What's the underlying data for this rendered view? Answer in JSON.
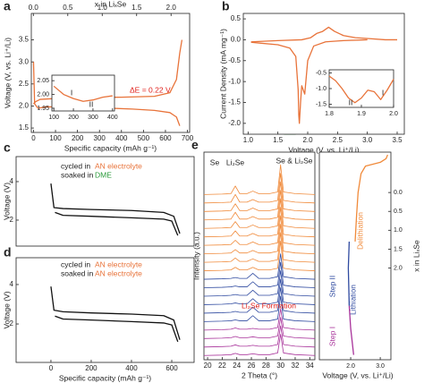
{
  "chart_data": [
    {
      "type": "line",
      "panel": "a",
      "xlim": [
        -10,
        710
      ],
      "ylim": [
        1.4,
        4.1
      ],
      "xticks": [
        0,
        100,
        200,
        300,
        400,
        500,
        600,
        700
      ],
      "yticks": [
        1.5,
        {
          "value": 2.0,
          "label": "2.0"
        },
        2.5,
        {
          "value": 3.0,
          "label": "3.0"
        },
        3.5
      ],
      "x2lim": [
        -0.03,
        2.27
      ],
      "x2ticks": [
        {
          "value": 0,
          "label": "0.0"
        },
        0.5,
        {
          "value": 1.0,
          "label": "1.0"
        },
        1.5,
        {
          "value": 2.0,
          "label": "2.0"
        }
      ],
      "x2label": "x in LiₓSe",
      "xlabel": "Specific capacity (mAh g⁻¹)",
      "ylabel": "Voltage (V, vs. Li⁺/Li)",
      "series": [
        {
          "color": "#e8733a",
          "x": [
            0,
            5,
            20,
            60,
            150,
            300,
            450,
            550,
            620,
            650,
            665
          ],
          "values": [
            3.0,
            2.05,
            1.95,
            1.98,
            1.98,
            1.96,
            1.93,
            1.9,
            1.85,
            1.75,
            1.55
          ]
        },
        {
          "color": "#e8733a",
          "x": [
            0,
            10,
            30,
            100,
            250,
            400,
            550,
            620,
            650,
            665,
            675
          ],
          "values": [
            2.05,
            2.1,
            2.15,
            2.17,
            2.19,
            2.2,
            2.22,
            2.3,
            2.6,
            3.2,
            3.5
          ]
        }
      ],
      "annotations": [
        {
          "text": "ΔE = 0.22 V",
          "color": "#e0201b"
        }
      ]
    },
    {
      "type": "line",
      "xlim": [
        90,
        410
      ],
      "ylim": [
        1.94,
        2.07
      ],
      "xticks": [
        100,
        200,
        300,
        400
      ],
      "yticks": [
        1.95,
        {
          "value": 2.0,
          "label": "2.00"
        },
        2.05
      ],
      "series": [
        {
          "color": "#e8733a",
          "x": [
            100,
            150,
            200,
            250,
            300,
            350,
            400
          ],
          "values": [
            2.03,
            2.0,
            1.985,
            1.975,
            1.98,
            1.99,
            1.995
          ]
        }
      ],
      "annotations": [
        {
          "text": "I",
          "color": "#222222"
        },
        {
          "text": "II",
          "color": "#222222"
        }
      ]
    },
    {
      "type": "line",
      "panel": "b",
      "xlim": [
        0.92,
        3.62
      ],
      "ylim": [
        -2.26,
        0.63
      ],
      "xticks": [
        {
          "value": 1.0,
          "label": "1.0"
        },
        1.5,
        {
          "value": 2.0,
          "label": "2.0"
        },
        2.5,
        {
          "value": 3.0,
          "label": "3.0"
        },
        3.5
      ],
      "yticks": [
        {
          "value": -2.0,
          "label": "-2.0"
        },
        -1.5,
        {
          "value": -1.0,
          "label": "-1.0"
        },
        -0.5,
        {
          "value": 0,
          "label": "0.0"
        },
        0.5
      ],
      "xlabel": "Voltage (V, vs. Li⁺/Li)",
      "ylabel": "Current Density (mA mg⁻¹)",
      "series": [
        {
          "color": "#e8733a",
          "x": [
            3.0,
            2.6,
            2.3,
            2.1,
            2.0,
            1.95,
            1.9,
            1.88,
            1.86,
            1.85,
            1.84,
            1.8,
            1.7,
            1.5,
            1.2,
            1.05
          ],
          "values": [
            0.0,
            -0.02,
            -0.05,
            -0.15,
            -0.5,
            -1.3,
            -1.1,
            -1.5,
            -2.0,
            -1.8,
            -1.2,
            -0.4,
            -0.2,
            -0.12,
            -0.08,
            -0.06
          ]
        },
        {
          "color": "#e8733a",
          "x": [
            1.05,
            1.5,
            1.9,
            2.05,
            2.15,
            2.25,
            2.35,
            2.45,
            2.6,
            2.8,
            3.0,
            3.3,
            3.5
          ],
          "values": [
            -0.05,
            -0.02,
            0.0,
            0.05,
            0.15,
            0.2,
            0.3,
            0.2,
            0.1,
            0.05,
            0.03,
            0.0,
            0.0
          ]
        }
      ]
    },
    {
      "type": "line",
      "xlim": [
        1.8,
        2.0
      ],
      "ylim": [
        -1.6,
        -0.4
      ],
      "xticks": [
        {
          "value": 1.8,
          "label": "1.8"
        },
        {
          "value": 1.9,
          "label": "1.9"
        },
        {
          "value": 2.0,
          "label": "2.0"
        }
      ],
      "yticks": [
        -1.5,
        {
          "value": -1.0,
          "label": "-1.0"
        },
        -0.5
      ],
      "series": [
        {
          "color": "#e8733a",
          "x": [
            1.8,
            1.82,
            1.84,
            1.86,
            1.88,
            1.9,
            1.92,
            1.94,
            1.96,
            1.98,
            2.0
          ],
          "values": [
            -0.6,
            -0.75,
            -1.0,
            -1.3,
            -1.45,
            -1.3,
            -1.05,
            -1.1,
            -1.35,
            -1.05,
            -0.7
          ]
        }
      ],
      "annotations": [
        {
          "text": "I",
          "color": "#222222"
        },
        {
          "text": "II",
          "color": "#222222"
        }
      ]
    },
    {
      "type": "line",
      "panel": "c",
      "xlim": [
        -173,
        711
      ],
      "ylim": [
        0.65,
        5.3
      ],
      "yticks": [
        2,
        4
      ],
      "ylabel": "Voltage (V)",
      "series": [
        {
          "color": "#111111",
          "x": [
            0,
            15,
            60,
            200,
            400,
            560,
            610,
            640
          ],
          "values": [
            3.9,
            2.65,
            2.6,
            2.55,
            2.5,
            2.4,
            2.2,
            1.3
          ]
        },
        {
          "color": "#111111",
          "x": [
            20,
            60,
            200,
            400,
            560,
            600,
            630
          ],
          "values": [
            2.4,
            2.25,
            2.2,
            2.12,
            2.05,
            1.95,
            1.2
          ]
        }
      ],
      "annotations": [
        {
          "text": "cycled in",
          "color": "#222222"
        },
        {
          "text": "AN electrolyte",
          "color": "#e8733a"
        },
        {
          "text": "soaked in",
          "color": "#222222"
        },
        {
          "text": "DME",
          "color": "#2a9a3a"
        }
      ]
    },
    {
      "type": "line",
      "panel": "d",
      "xlim": [
        -173,
        711
      ],
      "ylim": [
        0.05,
        5.36
      ],
      "xticks": [
        0,
        200,
        400,
        600
      ],
      "yticks": [
        2,
        4
      ],
      "ylabel": "Voltage (V)",
      "xlabel": "Specific capacity (mAh g⁻¹)",
      "series": [
        {
          "color": "#111111",
          "x": [
            0,
            15,
            60,
            200,
            400,
            560,
            610,
            640
          ],
          "values": [
            3.9,
            2.7,
            2.62,
            2.56,
            2.5,
            2.42,
            2.2,
            1.2
          ]
        },
        {
          "color": "#111111",
          "x": [
            20,
            60,
            200,
            400,
            560,
            600,
            630
          ],
          "values": [
            2.4,
            2.25,
            2.2,
            2.12,
            2.05,
            1.95,
            1.1
          ]
        }
      ],
      "annotations": [
        {
          "text": "cycled in",
          "color": "#222222"
        },
        {
          "text": "AN electrolyte",
          "color": "#e8733a"
        },
        {
          "text": "soaked in",
          "color": "#222222"
        },
        {
          "text": "AN electrolyte",
          "color": "#e8733a"
        }
      ]
    },
    {
      "type": "line",
      "panel": "e",
      "xlim": [
        19.5,
        34.7
      ],
      "ylim": [
        -0.5,
        24
      ],
      "xticks": [
        20,
        22,
        24,
        26,
        28,
        30,
        32,
        34
      ],
      "xlabel": "2 Theta (°)",
      "ylabel": "Intensity (a.u.)",
      "x": [
        19.5,
        22,
        23.2,
        23.8,
        24.4,
        25.4,
        26.2,
        27,
        28.5,
        29.6,
        30,
        30.4,
        32,
        34.7
      ],
      "series": [
        {
          "color": "#a8329a",
          "values": [
            0,
            0.05,
            0.1,
            0.25,
            0.1,
            0.1,
            0.2,
            0.1,
            0.1,
            0.3,
            2.5,
            0.3,
            0.1,
            0
          ]
        },
        {
          "color": "#a8329a",
          "values": [
            1,
            1.05,
            1.1,
            1.25,
            1.1,
            1.1,
            1.2,
            1.1,
            1.1,
            1.3,
            3.5,
            1.3,
            1.1,
            1
          ]
        },
        {
          "color": "#a8329a",
          "values": [
            2,
            2.05,
            2.1,
            2.25,
            2.1,
            2.1,
            2.2,
            2.1,
            2.1,
            2.3,
            4.5,
            2.3,
            2.1,
            2
          ]
        },
        {
          "color": "#a8329a",
          "values": [
            3,
            3.05,
            3.1,
            3.25,
            3.1,
            3.1,
            3.2,
            3.1,
            3.1,
            3.3,
            5.5,
            3.3,
            3.1,
            3
          ]
        },
        {
          "color": "#2f4aa0",
          "values": [
            4,
            4.05,
            4.1,
            4.2,
            4.1,
            4.1,
            4.7,
            4.1,
            4.1,
            4.3,
            7,
            4.3,
            4.1,
            4
          ]
        },
        {
          "color": "#2f4aa0",
          "values": [
            5,
            5.05,
            5.1,
            5.2,
            5.1,
            5.1,
            5.7,
            5.1,
            5.1,
            5.3,
            8,
            5.3,
            5.1,
            5
          ]
        },
        {
          "color": "#2f4aa0",
          "values": [
            6,
            6.05,
            6.1,
            6.2,
            6.1,
            6.1,
            6.7,
            6.1,
            6.1,
            6.3,
            9,
            6.3,
            6.1,
            6
          ]
        },
        {
          "color": "#2f4aa0",
          "values": [
            7,
            7.05,
            7.1,
            7.2,
            7.1,
            7.1,
            7.7,
            7.1,
            7.1,
            7.3,
            10,
            7.3,
            7.1,
            7
          ]
        },
        {
          "color": "#2f4aa0",
          "values": [
            8,
            8.05,
            8.1,
            8.2,
            8.1,
            8.1,
            8.7,
            8.1,
            8.1,
            8.3,
            11,
            8.3,
            8.1,
            8
          ]
        },
        {
          "color": "#2f4aa0",
          "values": [
            9,
            9.05,
            9.1,
            9.2,
            9.1,
            9.1,
            9.7,
            9.1,
            9.1,
            9.3,
            12,
            9.3,
            9.1,
            9
          ]
        },
        {
          "color": "#f08a3a",
          "values": [
            10,
            10.05,
            10.1,
            10.4,
            10.1,
            10.1,
            10.4,
            10.1,
            10.1,
            10.3,
            13.5,
            10.3,
            10.1,
            10
          ]
        },
        {
          "color": "#f08a3a",
          "values": [
            11,
            11.05,
            11.1,
            11.5,
            11.1,
            11.1,
            11.4,
            11.1,
            11.1,
            11.3,
            14.5,
            11.3,
            11.1,
            11
          ]
        },
        {
          "color": "#f08a3a",
          "values": [
            12,
            12.05,
            12.1,
            12.5,
            12.1,
            12.1,
            12.4,
            12.1,
            12.1,
            12.3,
            15.5,
            12.3,
            12.1,
            12
          ]
        },
        {
          "color": "#f08a3a",
          "values": [
            13,
            13.05,
            13.1,
            13.6,
            13.1,
            13.1,
            13.4,
            13.1,
            13.1,
            13.3,
            16.5,
            13.3,
            13.1,
            13
          ]
        },
        {
          "color": "#f08a3a",
          "values": [
            14,
            14.05,
            14.1,
            14.7,
            14.1,
            14.1,
            14.4,
            14.1,
            14.1,
            14.3,
            17.5,
            14.3,
            14.1,
            14
          ]
        },
        {
          "color": "#f08a3a",
          "values": [
            15,
            15.05,
            15.1,
            15.8,
            15.1,
            15.1,
            15.4,
            15.1,
            15.1,
            15.3,
            18.5,
            15.3,
            15.1,
            15
          ]
        },
        {
          "color": "#f08a3a",
          "values": [
            16,
            16.05,
            16.1,
            16.9,
            16.1,
            16.1,
            16.4,
            16.1,
            16.1,
            16.3,
            19.5,
            16.3,
            16.1,
            16
          ]
        },
        {
          "color": "#f08a3a",
          "values": [
            17,
            17.05,
            17.1,
            17.9,
            17.1,
            17.1,
            17.4,
            17.1,
            17.1,
            17.3,
            20.5,
            17.3,
            17.1,
            17
          ]
        },
        {
          "color": "#f08a3a",
          "values": [
            18,
            18.05,
            18.1,
            19.0,
            18.1,
            18.1,
            18.4,
            18.1,
            18.1,
            18.3,
            21.5,
            18.3,
            18.1,
            18
          ]
        },
        {
          "color": "#f08a3a",
          "values": [
            19,
            19.05,
            19.1,
            20.0,
            19.1,
            19.1,
            19.4,
            19.1,
            19.1,
            19.3,
            22.5,
            19.3,
            19.1,
            19
          ]
        }
      ],
      "annotations": [
        {
          "text": "Se",
          "color": "#222222"
        },
        {
          "text": "Li₂Se",
          "color": "#222222"
        },
        {
          "text": "Se & Li₂Se",
          "color": "#222222"
        },
        {
          "text": "Li₂Se Formation",
          "color": "#e0201b"
        }
      ]
    },
    {
      "type": "line",
      "xlim": [
        0.94,
        3.36
      ],
      "ylim": [
        4.43,
        -1.07
      ],
      "y_side": "right",
      "xticks": [
        {
          "value": 2.0,
          "label": "2.0"
        },
        {
          "value": 3.0,
          "label": "3.0"
        }
      ],
      "yticks": [
        {
          "value": 0,
          "label": "0.0"
        },
        0.5,
        {
          "value": 1.0,
          "label": "1.0"
        },
        1.5,
        {
          "value": 2.0,
          "label": "2.0"
        }
      ],
      "xlabel": "Voltage (V, vs. Li⁺/Li)",
      "ylabel": "x in LiₓSe",
      "series": [
        {
          "color": "#a8329a",
          "x": [
            2.1,
            2.0,
            1.95
          ],
          "values": [
            4.3,
            3.6,
            3.0
          ]
        },
        {
          "color": "#2f4aa0",
          "x": [
            1.95,
            1.92,
            1.95
          ],
          "values": [
            3.0,
            2.0,
            1.3
          ]
        },
        {
          "color": "#f08a3a",
          "x": [
            2.15,
            2.2,
            2.25,
            2.35,
            2.5,
            3.0,
            3.2,
            3.25
          ],
          "values": [
            1.3,
            0.6,
            0.0,
            -0.5,
            -0.7,
            -0.8,
            -0.9,
            -1.0
          ]
        }
      ],
      "annotations": [
        {
          "text": "Step I",
          "color": "#a8329a"
        },
        {
          "text": "Step II",
          "color": "#2f4aa0"
        },
        {
          "text": "Lithiation",
          "color": "#2f4aa0"
        },
        {
          "text": "Delithiation",
          "color": "#f08a3a"
        }
      ]
    }
  ]
}
